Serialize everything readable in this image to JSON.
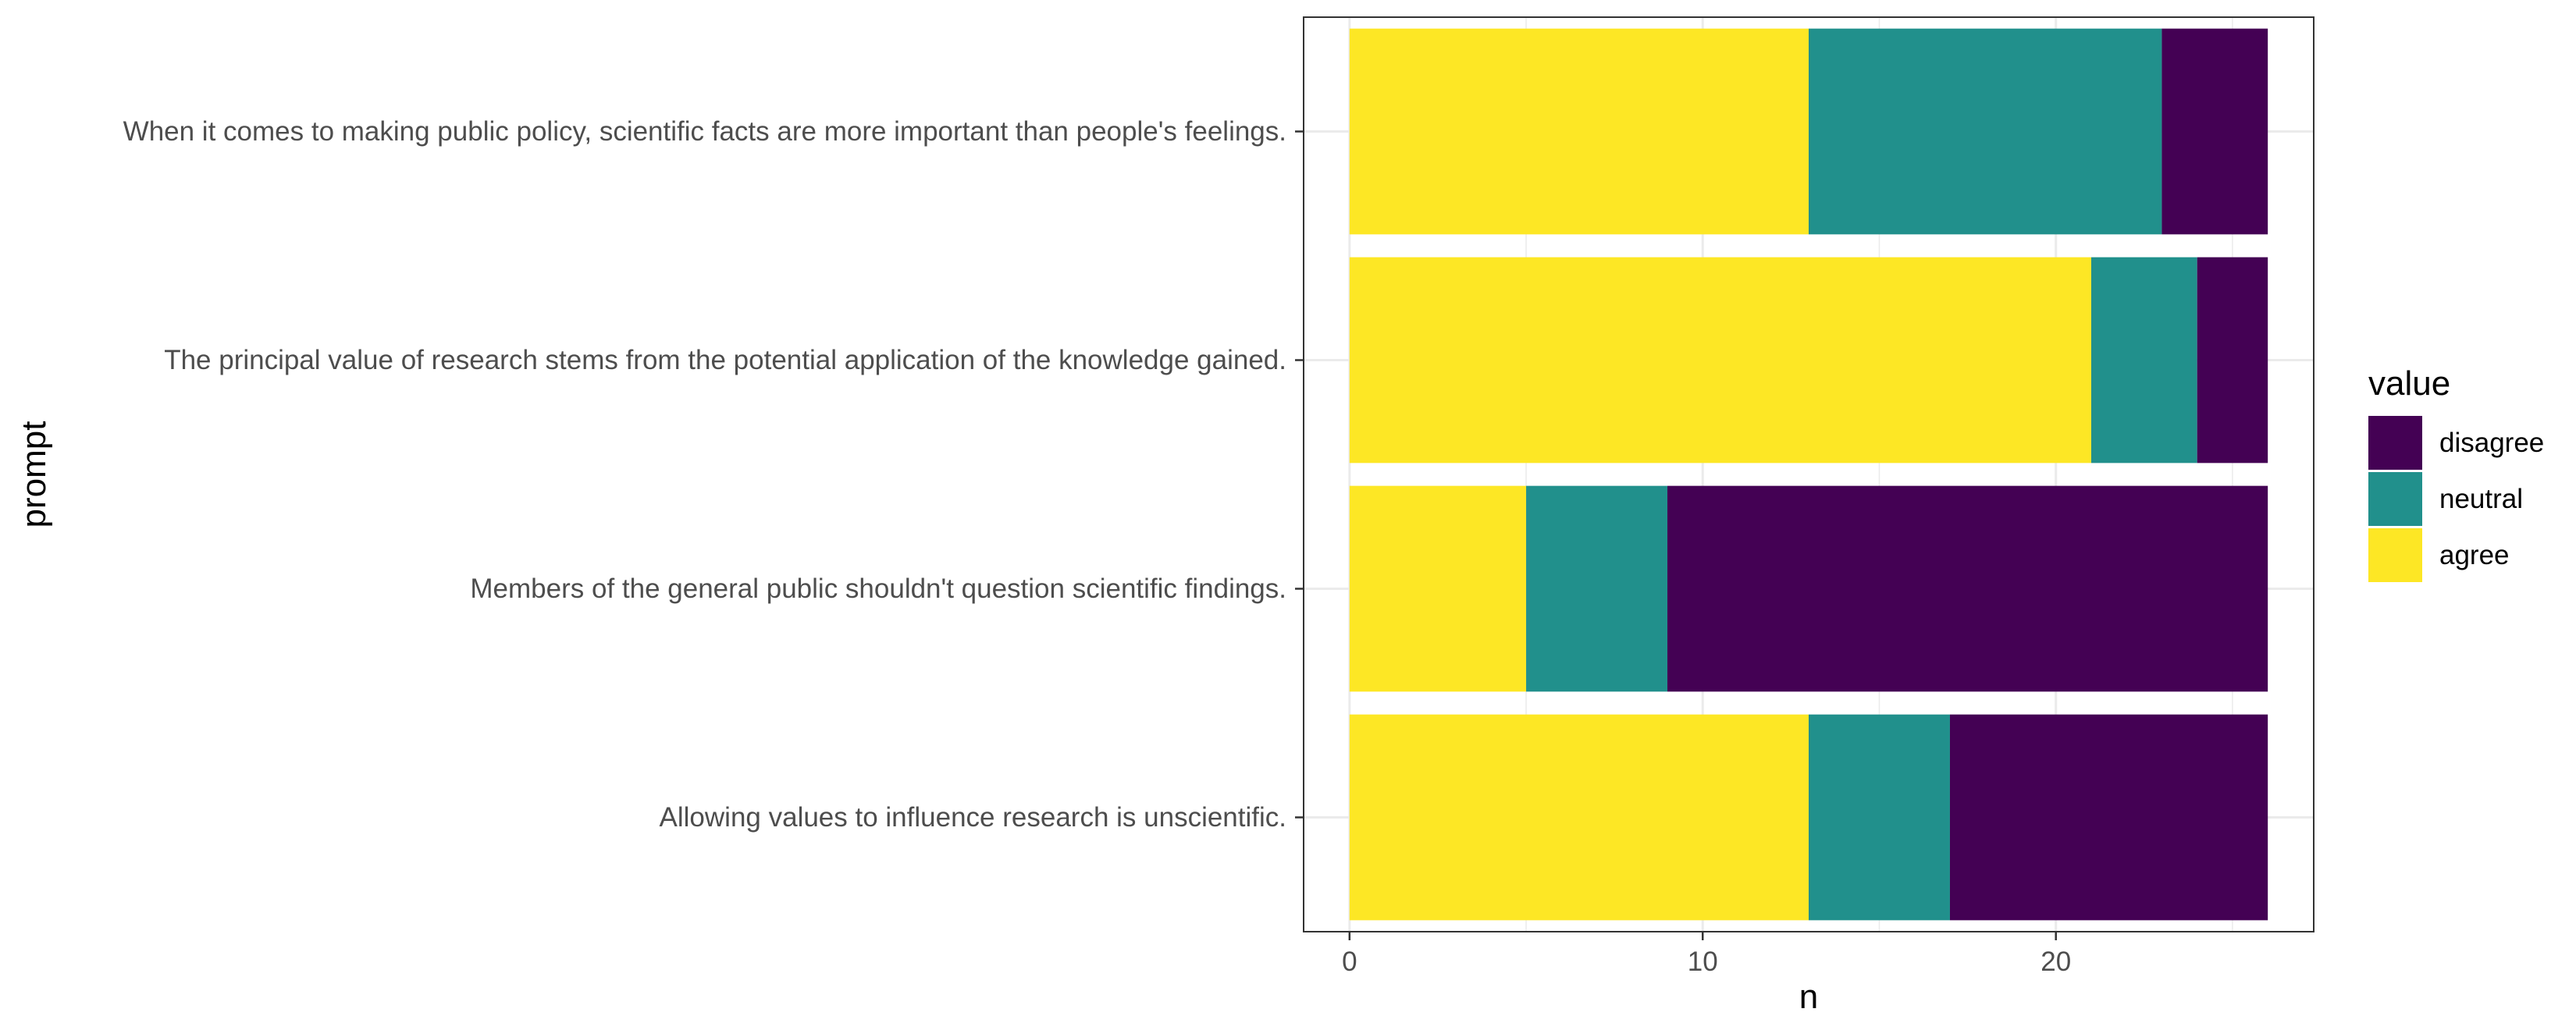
{
  "chart_data": {
    "type": "bar",
    "orientation": "horizontal",
    "stacked": true,
    "xlabel": "n",
    "ylabel": "prompt",
    "xlim": [
      -1.3,
      27.3
    ],
    "xticks": [
      0,
      10,
      20
    ],
    "grid": true,
    "legend": {
      "title": "value",
      "placement": "right",
      "entries": [
        "disagree",
        "neutral",
        "agree"
      ]
    },
    "categories": [
      "When it comes to making public policy, scientific facts are more important than people's feelings.",
      "The principal value of research stems from the potential application of the knowledge gained.",
      "Members of the general public shouldn't question scientific findings.",
      "Allowing values to influence research is unscientific."
    ],
    "series": [
      {
        "name": "agree",
        "color": "#FDE725",
        "values": [
          13,
          21,
          5,
          13
        ]
      },
      {
        "name": "neutral",
        "color": "#21908C",
        "values": [
          10,
          3,
          4,
          4
        ]
      },
      {
        "name": "disagree",
        "color": "#440154",
        "values": [
          3,
          2,
          17,
          9
        ]
      }
    ]
  }
}
